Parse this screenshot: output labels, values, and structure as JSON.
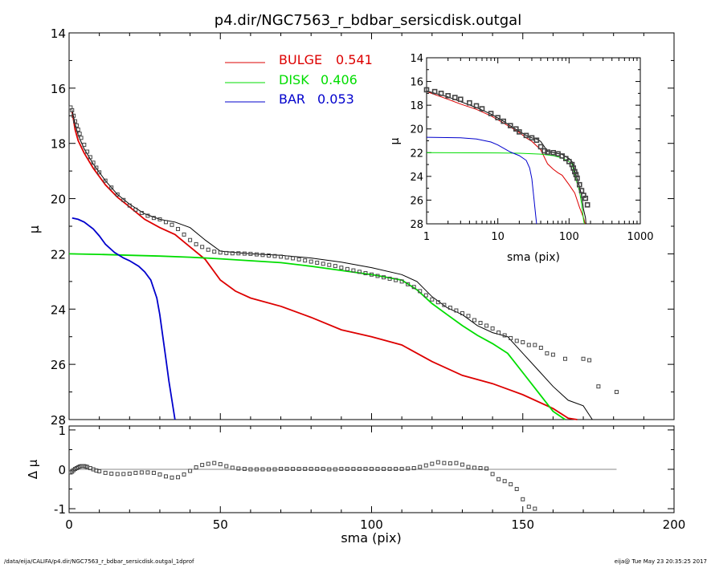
{
  "colors": {
    "bulge": "#dd0000",
    "disk": "#00dd00",
    "bar": "#0000cc",
    "model": "#000000",
    "observed": "#444444",
    "zeroline": "#888888"
  },
  "footer": {
    "left": "/data/eija/CALIFA/p4.dir/NGC7563_r_bdbar_sersicdisk.outgal_1dprof",
    "right": "eija@  Tue May 23 20:35:25 2017"
  },
  "chart_data": [
    {
      "id": "main",
      "type": "line",
      "title": "p4.dir/NGC7563_r_bdbar_sersicdisk.outgal",
      "xlabel": "",
      "ylabel": "μ",
      "xlim": [
        0,
        200
      ],
      "ylim": [
        28,
        14
      ],
      "y_inverted": true,
      "yticks": [
        14,
        16,
        18,
        20,
        22,
        24,
        26,
        28
      ],
      "legend_position": "top-center",
      "legend": [
        {
          "label": "BULGE",
          "value": "0.541",
          "color": "#dd0000"
        },
        {
          "label": "DISK",
          "value": "0.406",
          "color": "#00dd00"
        },
        {
          "label": "BAR",
          "value": "0.053",
          "color": "#0000cc"
        }
      ],
      "series": [
        {
          "name": "BULGE",
          "color": "#dd0000",
          "x": [
            1,
            2,
            3,
            5,
            8,
            12,
            16,
            20,
            25,
            30,
            35,
            40,
            45,
            50,
            55,
            60,
            70,
            80,
            90,
            100,
            110,
            120,
            130,
            140,
            150,
            160,
            165,
            168
          ],
          "y": [
            16.85,
            17.5,
            17.9,
            18.35,
            18.9,
            19.5,
            19.95,
            20.3,
            20.75,
            21.05,
            21.3,
            21.75,
            22.2,
            22.95,
            23.35,
            23.6,
            23.9,
            24.3,
            24.75,
            25.0,
            25.3,
            25.9,
            26.4,
            26.7,
            27.1,
            27.6,
            27.95,
            28.0
          ]
        },
        {
          "name": "DISK",
          "color": "#00dd00",
          "x": [
            0,
            10,
            20,
            30,
            40,
            50,
            60,
            70,
            80,
            90,
            100,
            110,
            115,
            120,
            125,
            130,
            135,
            140,
            145,
            150,
            155,
            160,
            164
          ],
          "y": [
            22.0,
            22.02,
            22.05,
            22.08,
            22.12,
            22.18,
            22.25,
            22.32,
            22.45,
            22.6,
            22.75,
            22.95,
            23.3,
            23.8,
            24.2,
            24.6,
            24.95,
            25.25,
            25.6,
            26.3,
            27.0,
            27.7,
            28.0
          ]
        },
        {
          "name": "BAR",
          "color": "#0000cc",
          "x": [
            1,
            3,
            5,
            8,
            10,
            12,
            15,
            18,
            20,
            23,
            25,
            27,
            29,
            30,
            31,
            32,
            33,
            34,
            35
          ],
          "y": [
            20.7,
            20.75,
            20.85,
            21.1,
            21.35,
            21.65,
            21.95,
            22.15,
            22.25,
            22.45,
            22.65,
            22.95,
            23.6,
            24.2,
            25.0,
            25.8,
            26.6,
            27.3,
            28.0
          ]
        },
        {
          "name": "model",
          "color": "#000000",
          "x": [
            1,
            2,
            3,
            5,
            8,
            12,
            16,
            20,
            25,
            30,
            35,
            40,
            45,
            50,
            55,
            60,
            70,
            80,
            90,
            100,
            110,
            115,
            120,
            125,
            130,
            135,
            140,
            145,
            150,
            155,
            160,
            165,
            170,
            173
          ],
          "y": [
            16.8,
            17.3,
            17.7,
            18.2,
            18.75,
            19.35,
            19.85,
            20.2,
            20.55,
            20.75,
            20.85,
            21.05,
            21.5,
            21.9,
            21.95,
            22.0,
            22.05,
            22.15,
            22.3,
            22.5,
            22.75,
            23.0,
            23.55,
            23.95,
            24.2,
            24.6,
            24.85,
            25.0,
            25.6,
            26.2,
            26.8,
            27.3,
            27.5,
            28.0
          ]
        },
        {
          "name": "observed",
          "color": "#444444",
          "x": [
            0.5,
            1,
            1.5,
            2,
            2.5,
            3,
            3.5,
            4,
            5,
            6,
            7,
            8,
            9,
            10,
            12,
            14,
            16,
            18,
            20,
            22,
            24,
            26,
            28,
            30,
            32,
            34,
            36,
            38,
            40,
            42,
            44,
            46,
            48,
            50,
            52,
            54,
            56,
            58,
            60,
            62,
            64,
            66,
            68,
            70,
            72,
            74,
            76,
            78,
            80,
            82,
            84,
            86,
            88,
            90,
            92,
            94,
            96,
            98,
            100,
            102,
            104,
            106,
            108,
            110,
            112,
            114,
            116,
            118,
            120,
            122,
            124,
            126,
            128,
            130,
            132,
            134,
            136,
            138,
            140,
            142,
            144,
            146,
            148,
            150,
            152,
            154,
            156,
            158,
            160,
            164,
            170,
            172,
            175,
            181
          ],
          "y": [
            16.7,
            16.8,
            17.0,
            17.2,
            17.35,
            17.5,
            17.65,
            17.8,
            18.05,
            18.3,
            18.5,
            18.7,
            18.88,
            19.05,
            19.35,
            19.6,
            19.85,
            20.05,
            20.25,
            20.4,
            20.52,
            20.62,
            20.7,
            20.75,
            20.85,
            20.95,
            21.1,
            21.3,
            21.5,
            21.65,
            21.75,
            21.85,
            21.92,
            21.95,
            21.97,
            21.98,
            21.98,
            21.99,
            22.0,
            22.02,
            22.04,
            22.06,
            22.08,
            22.1,
            22.13,
            22.16,
            22.2,
            22.24,
            22.28,
            22.32,
            22.36,
            22.4,
            22.44,
            22.5,
            22.55,
            22.6,
            22.65,
            22.7,
            22.75,
            22.8,
            22.85,
            22.9,
            22.95,
            23.0,
            23.1,
            23.2,
            23.35,
            23.5,
            23.65,
            23.75,
            23.85,
            23.95,
            24.05,
            24.15,
            24.25,
            24.4,
            24.5,
            24.6,
            24.7,
            24.85,
            24.95,
            25.05,
            25.15,
            25.2,
            25.3,
            25.3,
            25.4,
            25.6,
            25.65,
            25.8,
            25.8,
            25.85,
            26.8,
            27.0
          ]
        }
      ]
    },
    {
      "id": "inset",
      "type": "line",
      "title": "",
      "xlabel": "sma (pix)",
      "ylabel": "μ",
      "x_scale": "log",
      "xlim": [
        1,
        1000
      ],
      "ylim": [
        28,
        14
      ],
      "y_inverted": true,
      "xtick_labels": [
        "1",
        "10",
        "100",
        "1000"
      ],
      "yticks": [
        14,
        16,
        18,
        20,
        22,
        24,
        26,
        28
      ],
      "series": [
        {
          "name": "BULGE",
          "color": "#dd0000",
          "x": [
            1,
            2,
            3,
            5,
            8,
            12,
            16,
            20,
            25,
            30,
            40,
            50,
            60,
            70,
            80,
            100,
            120,
            140,
            160,
            168
          ],
          "y": [
            16.85,
            17.5,
            17.9,
            18.35,
            18.9,
            19.5,
            19.95,
            20.3,
            20.75,
            21.05,
            21.75,
            22.95,
            23.4,
            23.7,
            23.9,
            24.7,
            25.4,
            26.6,
            27.5,
            28.0
          ]
        },
        {
          "name": "DISK",
          "color": "#00dd00",
          "x": [
            1,
            10,
            20,
            40,
            60,
            80,
            100,
            110,
            120,
            130,
            140,
            150,
            160,
            164
          ],
          "y": [
            22.0,
            22.02,
            22.05,
            22.12,
            22.25,
            22.45,
            22.75,
            22.95,
            23.8,
            24.6,
            25.25,
            26.3,
            27.7,
            28.0
          ]
        },
        {
          "name": "BAR",
          "color": "#0000cc",
          "x": [
            1,
            3,
            5,
            8,
            10,
            15,
            20,
            25,
            28,
            30,
            32,
            34,
            35
          ],
          "y": [
            20.7,
            20.75,
            20.85,
            21.1,
            21.35,
            21.95,
            22.25,
            22.65,
            23.3,
            24.2,
            25.8,
            27.3,
            28.0
          ]
        },
        {
          "name": "model",
          "color": "#000000",
          "x": [
            1,
            2,
            3,
            5,
            8,
            12,
            16,
            20,
            25,
            30,
            35,
            40,
            45,
            50,
            60,
            80,
            100,
            110,
            120,
            130,
            140,
            150,
            160,
            170,
            173
          ],
          "y": [
            16.8,
            17.3,
            17.7,
            18.2,
            18.75,
            19.35,
            19.85,
            20.2,
            20.55,
            20.75,
            20.85,
            21.05,
            21.5,
            21.9,
            22.0,
            22.15,
            22.5,
            22.75,
            23.55,
            24.2,
            24.85,
            25.6,
            26.8,
            27.5,
            28.0
          ]
        },
        {
          "name": "observed",
          "color": "#444444",
          "x": [
            1,
            1.3,
            1.6,
            2,
            2.5,
            3,
            4,
            5,
            6,
            8,
            10,
            12,
            15,
            18,
            20,
            25,
            30,
            35,
            40,
            45,
            50,
            60,
            70,
            80,
            90,
            100,
            110,
            115,
            120,
            125,
            130,
            140,
            150,
            160,
            170,
            181
          ],
          "y": [
            16.7,
            16.85,
            17.0,
            17.2,
            17.35,
            17.5,
            17.8,
            18.05,
            18.3,
            18.7,
            19.05,
            19.35,
            19.72,
            20.0,
            20.25,
            20.55,
            20.75,
            20.95,
            21.5,
            21.85,
            21.95,
            22.0,
            22.1,
            22.28,
            22.5,
            22.75,
            23.0,
            23.3,
            23.6,
            23.85,
            24.15,
            24.7,
            25.2,
            25.6,
            25.85,
            26.4
          ]
        }
      ]
    },
    {
      "id": "residual",
      "type": "scatter",
      "title": "",
      "xlabel": "sma (pix)",
      "ylabel": "Δ μ",
      "xlim": [
        0,
        200
      ],
      "ylim": [
        -1.1,
        1.1
      ],
      "xticks": [
        0,
        50,
        100,
        150,
        200
      ],
      "yticks": [
        -1,
        0,
        1
      ],
      "zero_line_to": 181,
      "series": [
        {
          "name": "residual",
          "color": "#444444",
          "x": [
            0.5,
            1,
            1.5,
            2,
            2.5,
            3,
            3.5,
            4,
            4.5,
            5,
            5.5,
            6,
            7,
            8,
            9,
            10,
            12,
            14,
            16,
            18,
            20,
            22,
            24,
            26,
            28,
            30,
            32,
            34,
            36,
            38,
            40,
            42,
            44,
            46,
            48,
            50,
            52,
            54,
            56,
            58,
            60,
            62,
            64,
            66,
            68,
            70,
            72,
            74,
            76,
            78,
            80,
            82,
            84,
            86,
            88,
            90,
            92,
            94,
            96,
            98,
            100,
            102,
            104,
            106,
            108,
            110,
            112,
            114,
            116,
            118,
            120,
            122,
            124,
            126,
            128,
            130,
            132,
            134,
            136,
            138,
            140,
            142,
            144,
            146,
            148,
            150,
            152,
            154
          ],
          "y": [
            -0.08,
            -0.06,
            -0.02,
            0.01,
            0.03,
            0.05,
            0.07,
            0.08,
            0.08,
            0.08,
            0.07,
            0.06,
            0.03,
            0.0,
            -0.03,
            -0.05,
            -0.09,
            -0.11,
            -0.12,
            -0.12,
            -0.11,
            -0.09,
            -0.08,
            -0.08,
            -0.09,
            -0.13,
            -0.18,
            -0.21,
            -0.2,
            -0.13,
            -0.04,
            0.05,
            0.11,
            0.14,
            0.16,
            0.13,
            0.08,
            0.04,
            0.02,
            0.01,
            0.0,
            0.0,
            0.0,
            0.0,
            0.0,
            0.01,
            0.01,
            0.01,
            0.01,
            0.01,
            0.01,
            0.01,
            0.01,
            0.0,
            0.0,
            0.01,
            0.01,
            0.01,
            0.01,
            0.01,
            0.01,
            0.01,
            0.01,
            0.01,
            0.01,
            0.01,
            0.02,
            0.03,
            0.06,
            0.1,
            0.14,
            0.18,
            0.16,
            0.15,
            0.16,
            0.12,
            0.06,
            0.04,
            0.03,
            0.02,
            -0.12,
            -0.25,
            -0.3,
            -0.38,
            -0.5,
            -0.76,
            -0.95,
            -1.0
          ]
        }
      ]
    }
  ]
}
